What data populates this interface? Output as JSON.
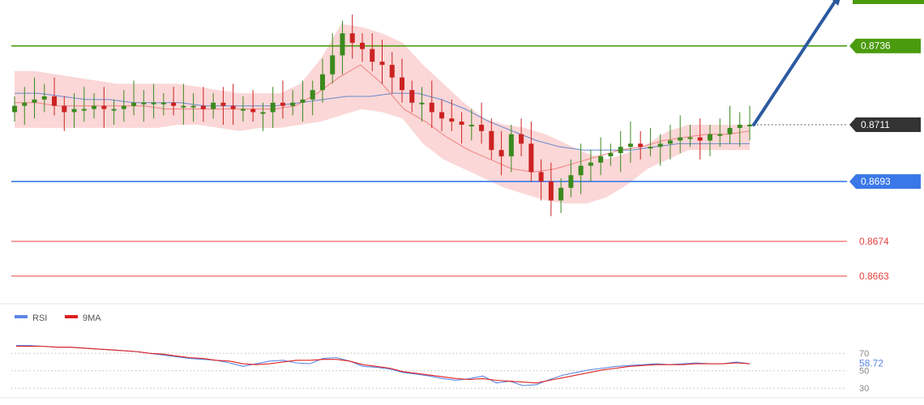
{
  "chart_data": {
    "type": "line",
    "instrument_view": "candlestick price chart with bollinger bands",
    "levels": [
      {
        "value": 0.8736,
        "label": "0.8736",
        "color": "#4a9b0e",
        "style": "solid",
        "badge": "green"
      },
      {
        "value": 0.8711,
        "label": "0.8711",
        "color": "#333333",
        "style": "dotted",
        "badge": "dark"
      },
      {
        "value": 0.8693,
        "label": "0.8693",
        "color": "#3a78e8",
        "style": "solid",
        "badge": "blue"
      },
      {
        "value": 0.8674,
        "label": "0.8674",
        "color": "#e84040",
        "style": "solid",
        "badge": "none"
      },
      {
        "value": 0.8663,
        "label": "0.8663",
        "color": "#e84040",
        "style": "solid",
        "badge": "none"
      }
    ],
    "price_range": [
      0.8655,
      0.8748
    ],
    "close_path": [
      0.8717,
      0.8718,
      0.8719,
      0.872,
      0.8717,
      0.8715,
      0.8716,
      0.8716,
      0.8717,
      0.8716,
      0.8716,
      0.8717,
      0.8718,
      0.8718,
      0.8718,
      0.8718,
      0.8717,
      0.8717,
      0.8717,
      0.8716,
      0.8718,
      0.8717,
      0.8716,
      0.8716,
      0.8715,
      0.8715,
      0.8718,
      0.8717,
      0.8718,
      0.8719,
      0.8722,
      0.8727,
      0.8733,
      0.874,
      0.8737,
      0.8735,
      0.8731,
      0.873,
      0.8726,
      0.8722,
      0.8718,
      0.8718,
      0.8715,
      0.8713,
      0.8712,
      0.8711,
      0.8711,
      0.8709,
      0.8703,
      0.8701,
      0.8708,
      0.8705,
      0.8696,
      0.8693,
      0.8687,
      0.8691,
      0.8695,
      0.8698,
      0.8699,
      0.8701,
      0.8702,
      0.8704,
      0.8705,
      0.8704,
      0.8704,
      0.8705,
      0.8706,
      0.8707,
      0.8707,
      0.8706,
      0.8708,
      0.8708,
      0.871,
      0.8711,
      0.8711
    ],
    "upper_band": [
      0.8728,
      0.8728,
      0.8727,
      0.8726,
      0.8725,
      0.8724,
      0.8724,
      0.8724,
      0.8724,
      0.8723,
      0.8722,
      0.8721,
      0.8721,
      0.8721,
      0.8724,
      0.8732,
      0.8743,
      0.8742,
      0.874,
      0.8737,
      0.873,
      0.8724,
      0.8718,
      0.8713,
      0.8711,
      0.871,
      0.8708,
      0.8705,
      0.8702,
      0.87,
      0.8702,
      0.8705,
      0.8709,
      0.8711,
      0.8711,
      0.8711,
      0.8711
    ],
    "lower_band": [
      0.871,
      0.871,
      0.871,
      0.871,
      0.871,
      0.871,
      0.871,
      0.871,
      0.8711,
      0.8711,
      0.871,
      0.8709,
      0.871,
      0.871,
      0.8711,
      0.8712,
      0.8714,
      0.8716,
      0.8715,
      0.8713,
      0.8705,
      0.87,
      0.8697,
      0.8694,
      0.8691,
      0.8689,
      0.8687,
      0.8686,
      0.8686,
      0.8688,
      0.8692,
      0.8697,
      0.87,
      0.8703,
      0.8703,
      0.8703,
      0.8703
    ],
    "ma_fast": [
      0.8718,
      0.8718,
      0.8717,
      0.8717,
      0.8717,
      0.8717,
      0.8717,
      0.8716,
      0.8716,
      0.8716,
      0.8716,
      0.8716,
      0.8716,
      0.8717,
      0.8721,
      0.8726,
      0.873,
      0.8724,
      0.8716,
      0.8712,
      0.8707,
      0.8703,
      0.87,
      0.8697,
      0.8696,
      0.8697,
      0.8699,
      0.8701,
      0.8703,
      0.8704,
      0.8706,
      0.8707,
      0.8708,
      0.8708,
      0.8709
    ],
    "ma_slow": [
      0.8721,
      0.8721,
      0.872,
      0.8719,
      0.8719,
      0.8718,
      0.8718,
      0.8718,
      0.8717,
      0.8717,
      0.8717,
      0.8717,
      0.8718,
      0.8719,
      0.872,
      0.872,
      0.8721,
      0.8721,
      0.8719,
      0.8716,
      0.8712,
      0.8709,
      0.8706,
      0.8704,
      0.8703,
      0.8703,
      0.8703,
      0.8704,
      0.8705,
      0.8705,
      0.8705,
      0.8705
    ],
    "forecast_arrow": {
      "from": 0.8711,
      "to": 0.874,
      "color": "#2c5aa0"
    },
    "band_fill_color": "#f9c9c9",
    "ma_fast_color": "#f08080",
    "ma_slow_color": "#6688cc",
    "bull_color": "#3a8a1e",
    "bear_color": "#cc2222",
    "rsi": {
      "legend": [
        {
          "name": "RSI",
          "color": "#5b86e5"
        },
        {
          "name": "9MA",
          "color": "#e02020"
        }
      ],
      "ticks": [
        "70",
        "50",
        "30"
      ],
      "tick_values": [
        70,
        50,
        30
      ],
      "current_label": "58.72",
      "current_value": 58.72,
      "rsi_values": [
        79,
        79,
        78,
        77,
        77,
        76,
        75,
        74,
        73,
        72,
        70,
        68,
        66,
        64,
        63,
        62,
        59,
        55,
        58,
        61,
        62,
        59,
        58,
        64,
        65,
        61,
        55,
        54,
        52,
        48,
        46,
        44,
        41,
        39,
        41,
        44,
        36,
        38,
        33,
        34,
        40,
        45,
        48,
        51,
        53,
        55,
        56,
        57,
        58,
        57,
        58,
        59,
        58,
        58,
        60,
        58
      ],
      "ma_values": [
        78,
        78,
        78,
        77,
        77,
        76,
        75,
        74,
        73,
        72,
        70,
        69,
        67,
        65,
        64,
        62,
        61,
        58,
        57,
        58,
        60,
        62,
        62,
        63,
        63,
        61,
        57,
        55,
        53,
        49,
        47,
        45,
        43,
        41,
        40,
        41,
        39,
        38,
        37,
        36,
        39,
        42,
        45,
        48,
        51,
        53,
        55,
        56,
        57,
        57,
        57,
        58,
        58,
        58,
        59,
        58
      ]
    }
  }
}
